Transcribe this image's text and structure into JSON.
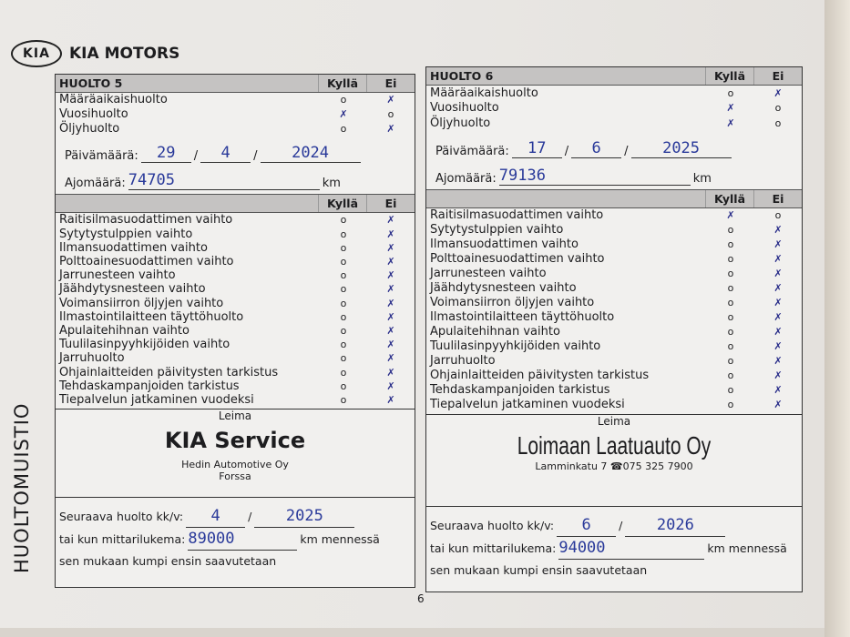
{
  "brand": {
    "logo": "KIA",
    "name": "KIA MOTORS"
  },
  "side_title": "HUOLTOMUISTIO",
  "page_number": "6",
  "col_yes": "Kyllä",
  "col_no": "Ei",
  "panels": [
    {
      "title": "HUOLTO 5",
      "top_items": [
        {
          "label": "Määräaikaishuolto",
          "checked": "no"
        },
        {
          "label": "Vuosihuolto",
          "checked": "yes"
        },
        {
          "label": "Öljyhuolto",
          "checked": "no"
        }
      ],
      "date_label": "Päivämäärä:",
      "date": {
        "day": "29",
        "month": "4",
        "year": "2024"
      },
      "km_label": "Ajomäärä:",
      "km": "74705",
      "km_unit": "km",
      "items": [
        {
          "label": "Raitisilmasuodattimen vaihto",
          "checked": "no"
        },
        {
          "label": "Sytytystulppien vaihto",
          "checked": "no"
        },
        {
          "label": "Ilmansuodattimen vaihto",
          "checked": "no"
        },
        {
          "label": "Polttoainesuodattimen vaihto",
          "checked": "no"
        },
        {
          "label": "Jarrunesteen vaihto",
          "checked": "no"
        },
        {
          "label": "Jäähdytysnesteen vaihto",
          "checked": "no"
        },
        {
          "label": "Voimansiirron öljyjen vaihto",
          "checked": "no"
        },
        {
          "label": "Ilmastointilaitteen täyttöhuolto",
          "checked": "no"
        },
        {
          "label": "Apulaitehihnan vaihto",
          "checked": "no"
        },
        {
          "label": "Tuulilasinpyyhkijöiden vaihto",
          "checked": "no"
        },
        {
          "label": "Jarruhuolto",
          "checked": "no"
        },
        {
          "label": "Ohjainlaitteiden päivitysten tarkistus",
          "checked": "no"
        },
        {
          "label": "Tehdaskampanjoiden tarkistus",
          "checked": "no"
        },
        {
          "label": "Tiepalvelun jatkaminen vuodeksi",
          "checked": "no"
        }
      ],
      "stamp_label": "Leima",
      "stamp": {
        "name": "KIA Service",
        "line1": "Hedin Automotive Oy",
        "line2": "Forssa"
      },
      "next_label": "Seuraava huolto kk/v:",
      "next": {
        "month": "4",
        "year": "2025"
      },
      "odo_label": "tai kun mittarilukema:",
      "odo": "89000",
      "odo_suffix": "km mennessä",
      "rule": "sen mukaan kumpi ensin saavutetaan"
    },
    {
      "title": "HUOLTO 6",
      "top_items": [
        {
          "label": "Määräaikaishuolto",
          "checked": "no"
        },
        {
          "label": "Vuosihuolto",
          "checked": "yes"
        },
        {
          "label": "Öljyhuolto",
          "checked": "yes"
        }
      ],
      "date_label": "Päivämäärä:",
      "date": {
        "day": "17",
        "month": "6",
        "year": "2025"
      },
      "km_label": "Ajomäärä:",
      "km": "79136",
      "km_unit": "km",
      "items": [
        {
          "label": "Raitisilmasuodattimen vaihto",
          "checked": "yes"
        },
        {
          "label": "Sytytystulppien vaihto",
          "checked": "no"
        },
        {
          "label": "Ilmansuodattimen vaihto",
          "checked": "no"
        },
        {
          "label": "Polttoainesuodattimen vaihto",
          "checked": "no"
        },
        {
          "label": "Jarrunesteen vaihto",
          "checked": "no"
        },
        {
          "label": "Jäähdytysnesteen vaihto",
          "checked": "no"
        },
        {
          "label": "Voimansiirron öljyjen vaihto",
          "checked": "no"
        },
        {
          "label": "Ilmastointilaitteen täyttöhuolto",
          "checked": "no"
        },
        {
          "label": "Apulaitehihnan vaihto",
          "checked": "no"
        },
        {
          "label": "Tuulilasinpyyhkijöiden vaihto",
          "checked": "no"
        },
        {
          "label": "Jarruhuolto",
          "checked": "no"
        },
        {
          "label": "Ohjainlaitteiden päivitysten tarkistus",
          "checked": "no"
        },
        {
          "label": "Tehdaskampanjoiden tarkistus",
          "checked": "no"
        },
        {
          "label": "Tiepalvelun jatkaminen vuodeksi",
          "checked": "no"
        }
      ],
      "stamp_label": "Leima",
      "stamp": {
        "name": "Loimaan Laatuauto Oy",
        "line1": "Lamminkatu 7",
        "line2": "075 325 7900"
      },
      "next_label": "Seuraava huolto kk/v:",
      "next": {
        "month": "6",
        "year": "2026"
      },
      "odo_label": "tai kun mittarilukema:",
      "odo": "94000",
      "odo_suffix": "km mennessä",
      "rule": "sen mukaan kumpi ensin saavutetaan"
    }
  ]
}
